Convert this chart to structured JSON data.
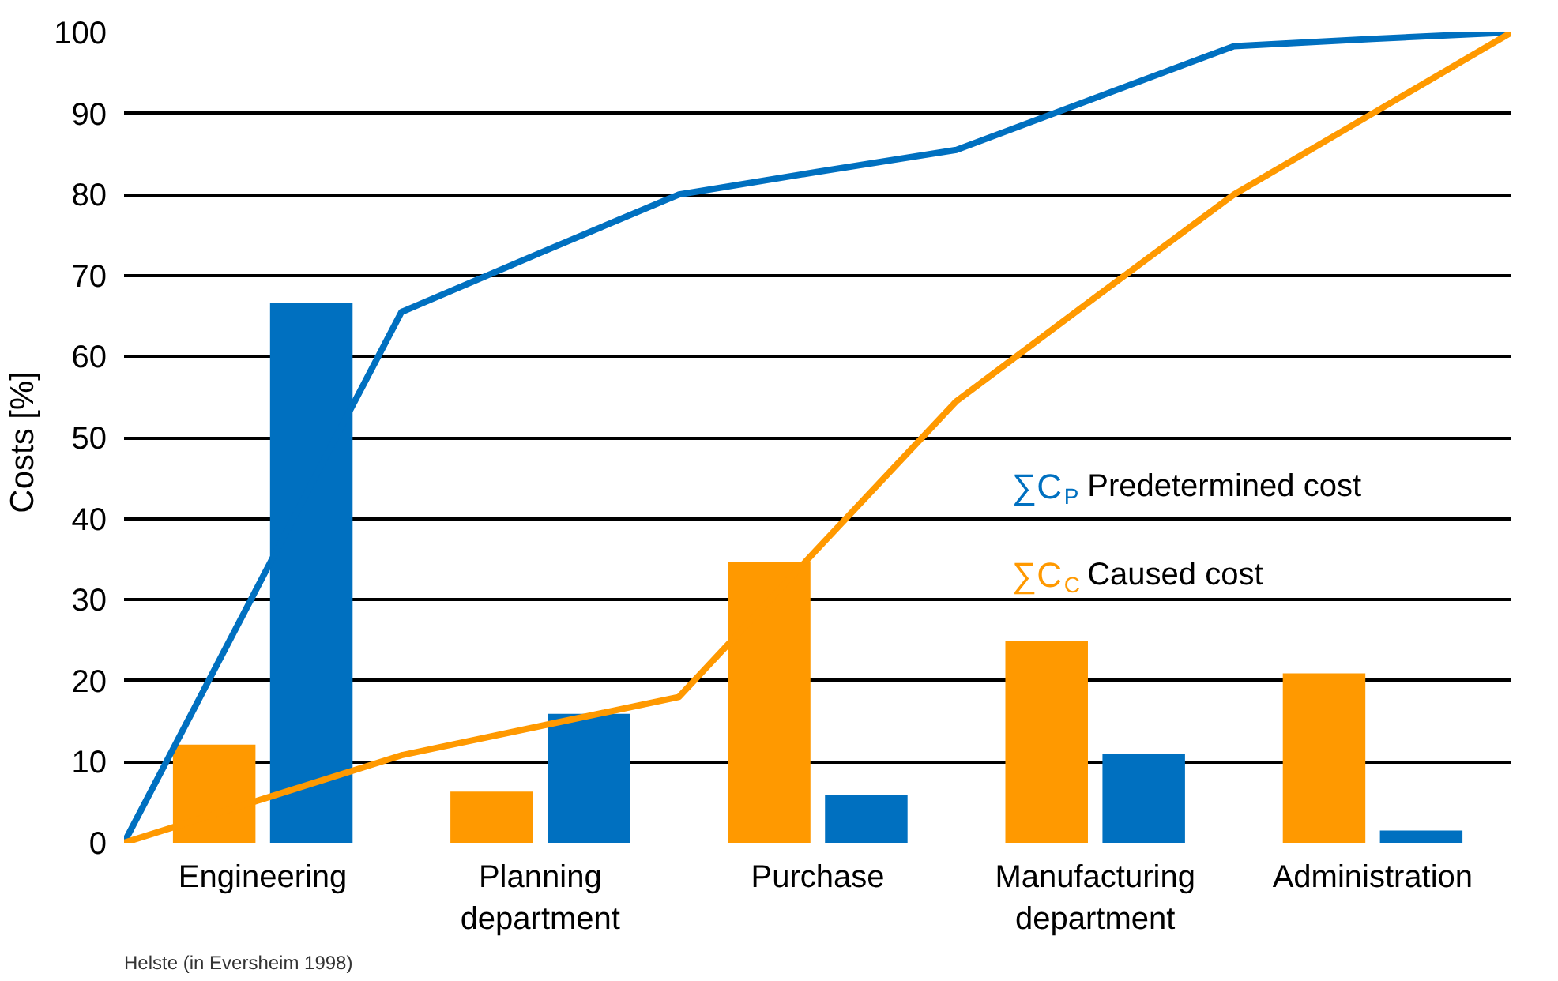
{
  "chart_data": {
    "type": "bar",
    "ylabel": "Costs  [%]",
    "categories": [
      null,
      "Engineering",
      null,
      "Planning department",
      null,
      "Purchase",
      null,
      "Manufacturing department",
      null,
      "Administration",
      null
    ],
    "series": [
      {
        "color": "#ff9900",
        "values": [
          null,
          12.1,
          null,
          6.3,
          null,
          34.7,
          null,
          24.9,
          null,
          20.9,
          null
        ]
      },
      {
        "color": "#0070c0",
        "values": [
          null,
          66.6,
          null,
          15.9,
          null,
          5.9,
          null,
          11.0,
          null,
          1.5,
          null
        ]
      },
      {
        "type": "line",
        "name": "∑C$_{P}$ Predetermined cost",
        "color": "#0070c0",
        "values": [
          0,
          32.8,
          65.5,
          72.8,
          80,
          82.8,
          85.5,
          91.9,
          98.3,
          99.2,
          100
        ]
      },
      {
        "type": "line",
        "name": "∑C$_{C}$ Caused cost",
        "color": "#ff9900",
        "values": [
          0,
          5.4,
          10.8,
          14.4,
          18,
          36.3,
          54.5,
          67.3,
          80,
          90,
          100
        ]
      }
    ],
    "ylim": [
      0,
      100
    ],
    "yticks": [
      0,
      10,
      20,
      30,
      40,
      50,
      60,
      70,
      80,
      90,
      100
    ],
    "grid": "y",
    "legend": "right",
    "line_style": "solid",
    "marker": "none",
    "annotations": [
      "Helste (in Eversheim 1998)"
    ]
  }
}
